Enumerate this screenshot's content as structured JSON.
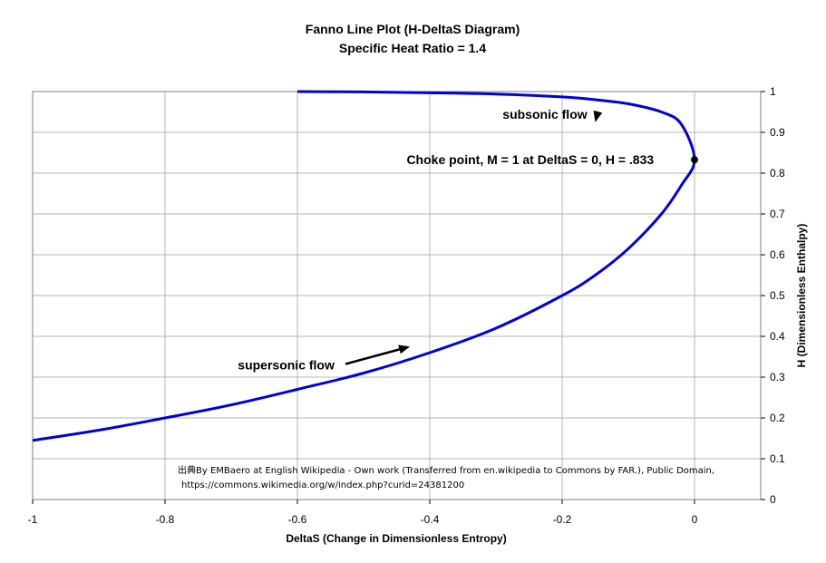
{
  "chart_data": {
    "type": "line",
    "title": "Fanno Line Plot (H-DeltaS Diagram)",
    "subtitle": "Specific Heat Ratio = 1.4",
    "xlabel": "DeltaS (Change in Dimensionless Entropy)",
    "ylabel": "H (Dimensionless Enthalpy)",
    "xlim": [
      -1,
      0.1
    ],
    "ylim": [
      0,
      1
    ],
    "x_ticks": [
      "-1",
      "-0.8",
      "-0.6",
      "-0.4",
      "-0.2",
      "0"
    ],
    "x_tick_values": [
      -1,
      -0.8,
      -0.6,
      -0.4,
      -0.2,
      0
    ],
    "y_ticks": [
      "0",
      "0.1",
      "0.2",
      "0.3",
      "0.4",
      "0.5",
      "0.6",
      "0.7",
      "0.8",
      "0.9",
      "1"
    ],
    "y_tick_values": [
      0,
      0.1,
      0.2,
      0.3,
      0.4,
      0.5,
      0.6,
      0.7,
      0.8,
      0.9,
      1
    ],
    "y_axis_side": "right",
    "grid": true,
    "series": [
      {
        "color": "#0000dd",
        "x": [
          -1,
          -0.9,
          -0.8,
          -0.7,
          -0.6,
          -0.5,
          -0.4,
          -0.3,
          -0.2,
          -0.15,
          -0.1,
          -0.05,
          -0.02,
          0,
          -0.02,
          -0.05,
          -0.1,
          -0.15,
          -0.2,
          -0.3,
          -0.4,
          -0.5,
          -0.6
        ],
        "y": [
          0.145,
          0.17,
          0.2,
          0.232,
          0.27,
          0.31,
          0.36,
          0.42,
          0.5,
          0.55,
          0.615,
          0.7,
          0.77,
          0.833,
          0.92,
          0.95,
          0.97,
          0.98,
          0.987,
          0.994,
          0.997,
          0.999,
          1.0
        ]
      }
    ],
    "points": [
      {
        "x": 0,
        "y": 0.833,
        "color": "#000000"
      }
    ],
    "annotations": [
      {
        "text": "subsonic flow",
        "x": -0.29,
        "y": 0.945,
        "arrow_to": [
          -0.15,
          0.925
        ]
      },
      {
        "text": "supersonic flow",
        "x": -0.69,
        "y": 0.33,
        "arrow_to": [
          -0.43,
          0.375
        ]
      },
      {
        "text": "Choke point, M = 1 at DeltaS = 0, H = .833",
        "x": -0.435,
        "y": 0.833
      }
    ],
    "credit_lines": [
      "出典By EMBaero at English Wikipedia - Own work (Transferred from en.wikipedia to Commons by FAR.), Public Domain,",
      "https://commons.wikimedia.org/w/index.php?curid=24381200"
    ]
  }
}
